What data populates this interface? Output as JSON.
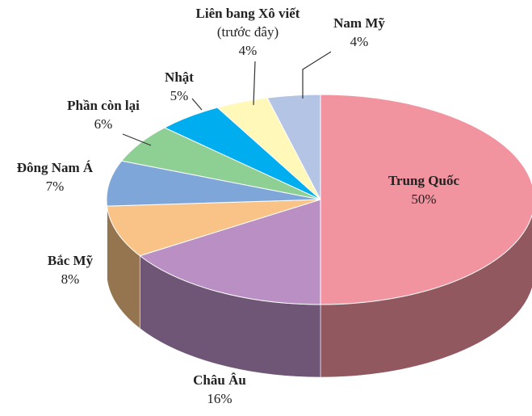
{
  "chart_data": {
    "type": "pie3d",
    "categories": [
      "Trung Quốc",
      "Châu Âu",
      "Bắc Mỹ",
      "Đông Nam Á",
      "Phần còn lại",
      "Nhật",
      "Liên bang Xô viết",
      "Nam Mỹ"
    ],
    "category_notes": [
      null,
      null,
      null,
      null,
      null,
      null,
      "(trước đây)",
      null
    ],
    "values": [
      50,
      16,
      8,
      7,
      6,
      5,
      4,
      4
    ],
    "value_labels": [
      "50%",
      "16%",
      "8%",
      "7%",
      "6%",
      "5%",
      "4%",
      "4%"
    ],
    "colors": [
      "#f2949f",
      "#b98fc4",
      "#f9c286",
      "#7ea6d8",
      "#8ecf94",
      "#00aeef",
      "#fff8b8",
      "#b4c4e4"
    ]
  }
}
